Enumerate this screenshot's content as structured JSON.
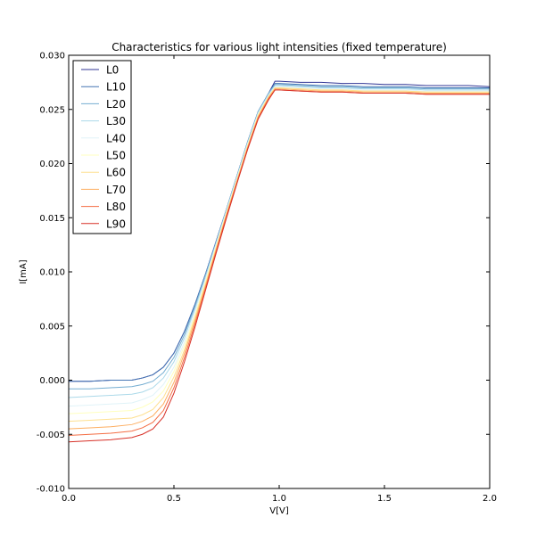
{
  "chart_data": {
    "type": "line",
    "title": "Characteristics for various light intensities (fixed temperature)",
    "xlabel": "V[V]",
    "ylabel": "I[mA]",
    "xlim": [
      0.0,
      2.0
    ],
    "ylim": [
      -0.01,
      0.03
    ],
    "x_ticks": [
      0.0,
      0.5,
      1.0,
      1.5,
      2.0
    ],
    "x_tick_labels": [
      "0.0",
      "0.5",
      "1.0",
      "1.5",
      "2.0"
    ],
    "y_ticks": [
      -0.01,
      -0.005,
      0.0,
      0.005,
      0.01,
      0.015,
      0.02,
      0.025,
      0.03
    ],
    "y_tick_labels": [
      "-0.010",
      "-0.005",
      "0.000",
      "0.005",
      "0.010",
      "0.015",
      "0.020",
      "0.025",
      "0.030"
    ],
    "grid": false,
    "legend_position": "top-left",
    "x": [
      0.0,
      0.1,
      0.2,
      0.3,
      0.35,
      0.4,
      0.45,
      0.5,
      0.55,
      0.6,
      0.65,
      0.7,
      0.75,
      0.8,
      0.85,
      0.9,
      0.95,
      0.98,
      1.0,
      1.1,
      1.2,
      1.3,
      1.4,
      1.5,
      1.6,
      1.7,
      1.8,
      1.9,
      2.0
    ],
    "series": [
      {
        "name": "L0",
        "color": "#313695",
        "values": [
          -0.0001,
          -0.0001,
          0.0,
          0.0,
          0.0002,
          0.0005,
          0.0012,
          0.0025,
          0.0045,
          0.007,
          0.0098,
          0.0128,
          0.0158,
          0.0189,
          0.022,
          0.0248,
          0.0265,
          0.0276,
          0.0276,
          0.0275,
          0.0275,
          0.0274,
          0.0274,
          0.0273,
          0.0273,
          0.0272,
          0.0272,
          0.0272,
          0.0271
        ]
      },
      {
        "name": "L10",
        "color": "#4575b4",
        "values": [
          -0.0001,
          -0.0001,
          0.0,
          0.0,
          0.0002,
          0.0005,
          0.0012,
          0.0025,
          0.0045,
          0.007,
          0.0098,
          0.0128,
          0.0158,
          0.0189,
          0.022,
          0.0248,
          0.0265,
          0.0274,
          0.0274,
          0.0273,
          0.0272,
          0.0272,
          0.0271,
          0.0271,
          0.0271,
          0.027,
          0.027,
          0.027,
          0.027
        ]
      },
      {
        "name": "L20",
        "color": "#74add1",
        "values": [
          -0.0008,
          -0.0008,
          -0.0007,
          -0.0006,
          -0.0004,
          -0.0001,
          0.0007,
          0.0021,
          0.0042,
          0.0068,
          0.0097,
          0.0127,
          0.0158,
          0.0189,
          0.022,
          0.0248,
          0.0265,
          0.0273,
          0.0273,
          0.0272,
          0.0271,
          0.0271,
          0.027,
          0.027,
          0.027,
          0.0269,
          0.0269,
          0.0269,
          0.0269
        ]
      },
      {
        "name": "L30",
        "color": "#abd9e9",
        "values": [
          -0.0016,
          -0.0015,
          -0.0014,
          -0.0013,
          -0.0011,
          -0.0007,
          0.0002,
          0.0017,
          0.0039,
          0.0066,
          0.0095,
          0.0126,
          0.0157,
          0.0188,
          0.0219,
          0.0247,
          0.0264,
          0.0272,
          0.0272,
          0.0271,
          0.027,
          0.027,
          0.0269,
          0.0269,
          0.0269,
          0.0268,
          0.0268,
          0.0268,
          0.0268
        ]
      },
      {
        "name": "L40",
        "color": "#e0f3f8",
        "values": [
          -0.0024,
          -0.0023,
          -0.0022,
          -0.0021,
          -0.0018,
          -0.0014,
          -0.0004,
          0.0012,
          0.0035,
          0.0063,
          0.0093,
          0.0125,
          0.0156,
          0.0187,
          0.0218,
          0.0246,
          0.0263,
          0.0271,
          0.0271,
          0.027,
          0.0269,
          0.0269,
          0.0268,
          0.0268,
          0.0268,
          0.0267,
          0.0267,
          0.0267,
          0.0267
        ]
      },
      {
        "name": "L50",
        "color": "#ffffbf",
        "values": [
          -0.0031,
          -0.003,
          -0.0029,
          -0.0028,
          -0.0025,
          -0.002,
          -0.001,
          0.0008,
          0.0032,
          0.006,
          0.0091,
          0.0123,
          0.0155,
          0.0186,
          0.0217,
          0.0245,
          0.0262,
          0.027,
          0.027,
          0.0269,
          0.0268,
          0.0268,
          0.0267,
          0.0267,
          0.0267,
          0.0266,
          0.0266,
          0.0266,
          0.0266
        ]
      },
      {
        "name": "L60",
        "color": "#fee090",
        "values": [
          -0.0038,
          -0.0037,
          -0.0036,
          -0.0035,
          -0.0032,
          -0.0027,
          -0.0016,
          0.0003,
          0.0028,
          0.0058,
          0.0089,
          0.0122,
          0.0154,
          0.0185,
          0.0216,
          0.0244,
          0.0262,
          0.027,
          0.027,
          0.0269,
          0.0268,
          0.0268,
          0.0267,
          0.0267,
          0.0267,
          0.0266,
          0.0266,
          0.0266,
          0.0266
        ]
      },
      {
        "name": "L70",
        "color": "#fdae61",
        "values": [
          -0.0045,
          -0.0044,
          -0.0043,
          -0.0041,
          -0.0038,
          -0.0033,
          -0.0022,
          -0.0002,
          0.0025,
          0.0055,
          0.0087,
          0.012,
          0.0153,
          0.0184,
          0.0215,
          0.0243,
          0.0261,
          0.0269,
          0.0269,
          0.0268,
          0.0267,
          0.0267,
          0.0266,
          0.0266,
          0.0266,
          0.0265,
          0.0265,
          0.0265,
          0.0265
        ]
      },
      {
        "name": "L80",
        "color": "#f46d43",
        "values": [
          -0.0051,
          -0.005,
          -0.0049,
          -0.0047,
          -0.0044,
          -0.0039,
          -0.0028,
          -0.0007,
          0.0021,
          0.0052,
          0.0085,
          0.0119,
          0.0152,
          0.0183,
          0.0214,
          0.0242,
          0.026,
          0.0268,
          0.0268,
          0.0267,
          0.0266,
          0.0266,
          0.0265,
          0.0265,
          0.0265,
          0.0264,
          0.0264,
          0.0264,
          0.0264
        ]
      },
      {
        "name": "L90",
        "color": "#d73027",
        "values": [
          -0.0057,
          -0.0056,
          -0.0055,
          -0.0053,
          -0.005,
          -0.0045,
          -0.0034,
          -0.0012,
          0.0017,
          0.0049,
          0.0083,
          0.0117,
          0.015,
          0.0182,
          0.0213,
          0.0241,
          0.0259,
          0.0268,
          0.0268,
          0.0267,
          0.0266,
          0.0266,
          0.0265,
          0.0265,
          0.0265,
          0.0264,
          0.0264,
          0.0264,
          0.0264
        ]
      }
    ]
  }
}
